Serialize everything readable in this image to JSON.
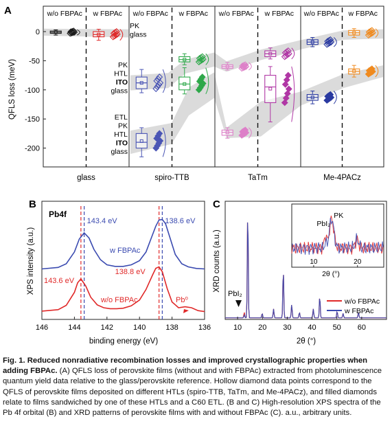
{
  "chart_data": [
    {
      "panel": "A",
      "type": "box",
      "ylabel": "QFLS loss (meV)",
      "ylim": [
        -235,
        12
      ],
      "yticks": [
        0,
        -50,
        -100,
        -150,
        -200
      ],
      "groups": [
        "glass",
        "spiro-TTB",
        "TaTm",
        "Me-4PACz"
      ],
      "group_subheaders": [
        "w/o FBPAc",
        "w FBPAc"
      ],
      "stack_labels": {
        "glass": [
          "PK",
          "glass"
        ],
        "htl": [
          "PK",
          "HTL",
          "ITO",
          "glass"
        ],
        "full": [
          "ETL",
          "PK",
          "HTL",
          "ITO",
          "glass"
        ]
      },
      "colors": {
        "glass": [
          "#1a1a1a",
          "#e02828"
        ],
        "spiro-TTB": [
          "#4a55b5",
          "#2ea84a"
        ],
        "TaTm": [
          "#dd7fc8",
          "#b037a5"
        ],
        "Me-4PACz": [
          "#2a3aa0",
          "#f08a1e"
        ]
      },
      "series": [
        {
          "group": "glass",
          "stack": "glass",
          "fbpac": false,
          "median": -1,
          "q1": -3,
          "q3": 1,
          "min": -6,
          "max": 3,
          "mean": -1
        },
        {
          "group": "glass",
          "stack": "glass",
          "fbpac": true,
          "median": -5,
          "q1": -9,
          "q3": 0,
          "min": -15,
          "max": 4,
          "mean": -5
        },
        {
          "group": "spiro-TTB",
          "stack": "htl",
          "fbpac": false,
          "median": -88,
          "q1": -98,
          "q3": -78,
          "min": -105,
          "max": -65,
          "mean": -88
        },
        {
          "group": "spiro-TTB",
          "stack": "htl",
          "fbpac": true,
          "median": -48,
          "q1": -52,
          "q3": -43,
          "min": -57,
          "max": -38,
          "mean": -48
        },
        {
          "group": "spiro-TTB",
          "stack": "full",
          "fbpac": false,
          "median": -190,
          "q1": -200,
          "q3": -175,
          "min": -215,
          "max": -165,
          "mean": -188
        },
        {
          "group": "spiro-TTB",
          "stack": "full",
          "fbpac": true,
          "median": -90,
          "q1": -100,
          "q3": -78,
          "min": -107,
          "max": -62,
          "mean": -90
        },
        {
          "group": "TaTm",
          "stack": "htl",
          "fbpac": false,
          "median": -60,
          "q1": -63,
          "q3": -57,
          "min": -66,
          "max": -53,
          "mean": -60
        },
        {
          "group": "TaTm",
          "stack": "htl",
          "fbpac": true,
          "median": -38,
          "q1": -43,
          "q3": -33,
          "min": -47,
          "max": -28,
          "mean": -38
        },
        {
          "group": "TaTm",
          "stack": "full",
          "fbpac": false,
          "median": -173,
          "q1": -178,
          "q3": -169,
          "min": -183,
          "max": -165,
          "mean": -173
        },
        {
          "group": "TaTm",
          "stack": "full",
          "fbpac": true,
          "median": -95,
          "q1": -122,
          "q3": -75,
          "min": -155,
          "max": -60,
          "mean": -98
        },
        {
          "group": "Me-4PACz",
          "stack": "htl",
          "fbpac": false,
          "median": -18,
          "q1": -22,
          "q3": -14,
          "min": -26,
          "max": -10,
          "mean": -18
        },
        {
          "group": "Me-4PACz",
          "stack": "htl",
          "fbpac": true,
          "median": -2,
          "q1": -6,
          "q3": 2,
          "min": -10,
          "max": 5,
          "mean": -2
        },
        {
          "group": "Me-4PACz",
          "stack": "full",
          "fbpac": false,
          "median": -113,
          "q1": -118,
          "q3": -108,
          "min": -124,
          "max": -102,
          "mean": -113
        },
        {
          "group": "Me-4PACz",
          "stack": "full",
          "fbpac": true,
          "median": -68,
          "q1": -73,
          "q3": -64,
          "min": -78,
          "max": -58,
          "mean": -68
        }
      ]
    },
    {
      "panel": "B",
      "title": "Pb4f",
      "type": "line",
      "xlabel": "binding energy (eV)",
      "ylabel": "XPS intensity (a.u.)",
      "xlim": [
        146,
        136
      ],
      "xticks": [
        146,
        144,
        142,
        140,
        138,
        136
      ],
      "series": [
        {
          "name": "w FBPAc",
          "color": "#3a4ab0",
          "offset": 1.0,
          "x": [
            146,
            145,
            144.5,
            144,
            143.7,
            143.4,
            143.1,
            142.8,
            142.4,
            142,
            141.5,
            141,
            140.5,
            140,
            139.6,
            139.3,
            139,
            138.8,
            138.6,
            138.4,
            138.1,
            137.8,
            137.4,
            137,
            136.5,
            136
          ],
          "y": [
            0.02,
            0.05,
            0.12,
            0.35,
            0.6,
            0.72,
            0.62,
            0.4,
            0.2,
            0.1,
            0.07,
            0.07,
            0.1,
            0.18,
            0.35,
            0.6,
            0.85,
            0.97,
            0.98,
            0.9,
            0.6,
            0.3,
            0.12,
            0.06,
            0.03,
            0.02
          ]
        },
        {
          "name": "w/o FBPAc",
          "color": "#e02828",
          "offset": 0.0,
          "x": [
            146,
            145,
            144.5,
            144,
            143.8,
            143.6,
            143.3,
            143,
            142.6,
            142.2,
            141.8,
            141.4,
            141,
            140.5,
            140,
            139.6,
            139.2,
            139,
            138.8,
            138.6,
            138.3,
            138,
            137.6,
            137.2,
            136.8,
            136.4,
            136
          ],
          "y": [
            0.03,
            0.06,
            0.15,
            0.42,
            0.62,
            0.7,
            0.55,
            0.32,
            0.16,
            0.1,
            0.08,
            0.08,
            0.09,
            0.14,
            0.26,
            0.48,
            0.78,
            0.92,
            0.95,
            0.85,
            0.5,
            0.22,
            0.1,
            0.12,
            0.1,
            0.04,
            0.02
          ]
        }
      ],
      "annotations": [
        {
          "text": "143.4 eV",
          "color": "#3a4ab0"
        },
        {
          "text": "138.6 eV",
          "color": "#3a4ab0"
        },
        {
          "text": "143.6 eV",
          "color": "#e02828"
        },
        {
          "text": "138.8 eV",
          "color": "#e02828"
        },
        {
          "text": "Pb⁰",
          "color": "#e02828"
        }
      ],
      "dashed_lines": [
        {
          "x": 143.6,
          "color": "#e02828"
        },
        {
          "x": 143.4,
          "color": "#3a4ab0"
        },
        {
          "x": 138.8,
          "color": "#e02828"
        },
        {
          "x": 138.6,
          "color": "#3a4ab0"
        }
      ]
    },
    {
      "panel": "C",
      "type": "line",
      "xlabel": "2θ (°)",
      "ylabel": "XRD counts (a.u.)",
      "xlim": [
        5,
        70
      ],
      "xticks": [
        10,
        20,
        30,
        40,
        50,
        60
      ],
      "peaks": [
        {
          "x": 12.7,
          "height": 0.05,
          "label": "PbI₂"
        },
        {
          "x": 14.1,
          "height": 1.0
        },
        {
          "x": 19.9,
          "height": 0.04
        },
        {
          "x": 24.5,
          "height": 0.08
        },
        {
          "x": 28.4,
          "height": 0.45
        },
        {
          "x": 31.8,
          "height": 0.12
        },
        {
          "x": 34.9,
          "height": 0.05
        },
        {
          "x": 40.5,
          "height": 0.08
        },
        {
          "x": 43.1,
          "height": 0.2
        },
        {
          "x": 50.1,
          "height": 0.06
        },
        {
          "x": 52.5,
          "height": 0.04
        },
        {
          "x": 58.7,
          "height": 0.05
        }
      ],
      "series": [
        {
          "name": "w/o FBPAc",
          "color": "#e02828"
        },
        {
          "name": "w FBPAc",
          "color": "#3a4ab0"
        }
      ],
      "inset": {
        "xlabel": "2θ (°)",
        "xlim": [
          5,
          26
        ],
        "xticks": [
          10,
          20
        ],
        "labels": [
          "PbI₂",
          "PK"
        ]
      }
    }
  ],
  "panel_letters": [
    "A",
    "B",
    "C"
  ],
  "caption": {
    "title": "Fig. 1. Reduced nonradiative recombination losses and improved crystallographic properties when adding FBPAc.",
    "body_a": "(A) QFLS loss of perovskite films (without and with FBPAc) extracted from photoluminescence quantum yield data relative to the glass/perovskite reference. Hollow diamond data points correspond to the QFLS of perovskite films deposited on different HTLs (spiro-TTB, TaTm, and Me-4PACz), and filled diamonds relate to films sandwiched by one of these HTLs and a C60 ETL.",
    "body_bc": "(B and C) High-resolution XPS spectra of the Pb 4f orbital (B) and XRD patterns of perovskite films with and without FBPAc (C). a.u., arbitrary units."
  }
}
